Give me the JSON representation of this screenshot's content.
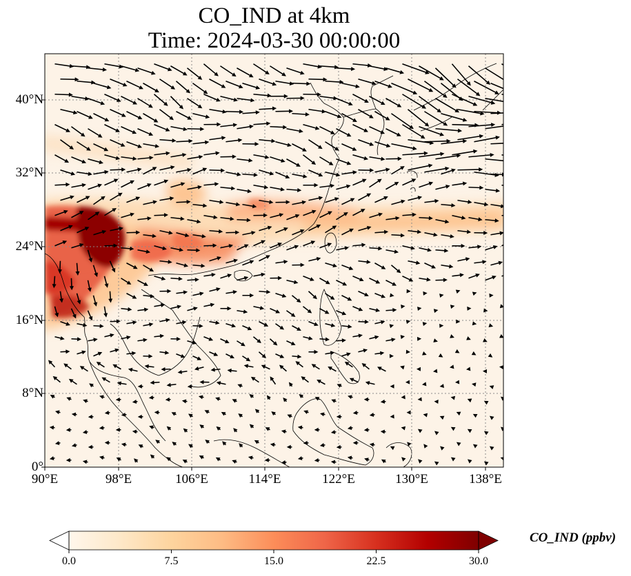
{
  "title": {
    "line1": "CO_IND at 4km",
    "line2": "Time: 2024-03-30 00:00:00"
  },
  "map": {
    "variable": "CO_IND",
    "level": "4km",
    "time": "2024-03-30 00:00:00",
    "lon_range": [
      90,
      140
    ],
    "lat_range": [
      0,
      45
    ],
    "lon_ticks": [
      "90°E",
      "98°E",
      "106°E",
      "114°E",
      "122°E",
      "130°E",
      "138°E"
    ],
    "lat_ticks": [
      "0°",
      "8°N",
      "16°N",
      "24°N",
      "32°N",
      "40°N"
    ],
    "gridlines": true,
    "overlay": "wind vectors",
    "colormap": "OrRd",
    "colors": {
      "low": "#fff7ec",
      "mid": "#fc8d59",
      "high": "#7f0000",
      "coast": "#000000"
    }
  },
  "colorbar": {
    "label": "CO_IND (ppbv)",
    "min": 0.0,
    "max": 30.0,
    "ticks": [
      "0.0",
      "7.5",
      "15.0",
      "22.5",
      "30.0"
    ],
    "extend": "both"
  }
}
